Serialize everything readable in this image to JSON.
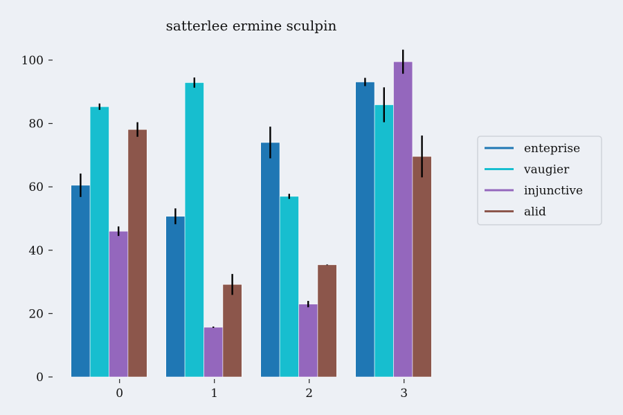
{
  "chart_data": {
    "type": "bar",
    "title": "satterlee ermine sculpin",
    "xlabel": "",
    "ylabel": "",
    "categories": [
      "0",
      "1",
      "2",
      "3"
    ],
    "ylim": [
      0,
      105
    ],
    "yticks": [
      0,
      20,
      40,
      60,
      80,
      100
    ],
    "grid": false,
    "legend_position": "right",
    "series": [
      {
        "name": "enteprise",
        "color": "#1f77b4",
        "values": [
          60.5,
          50.7,
          74.0,
          93.1
        ],
        "errors": [
          3.7,
          2.5,
          5.0,
          1.3
        ]
      },
      {
        "name": "vaugier",
        "color": "#17becf",
        "values": [
          85.3,
          92.9,
          57.0,
          85.9
        ],
        "errors": [
          1.0,
          1.6,
          0.8,
          5.5
        ]
      },
      {
        "name": "injunctive",
        "color": "#9467bd",
        "values": [
          46.0,
          15.7,
          23.0,
          99.5
        ],
        "errors": [
          1.5,
          0.2,
          1.0,
          3.8
        ]
      },
      {
        "name": "alid",
        "color": "#8c564b",
        "values": [
          78.1,
          29.2,
          35.4,
          69.6
        ],
        "errors": [
          2.3,
          3.3,
          0.1,
          6.6
        ]
      }
    ]
  }
}
